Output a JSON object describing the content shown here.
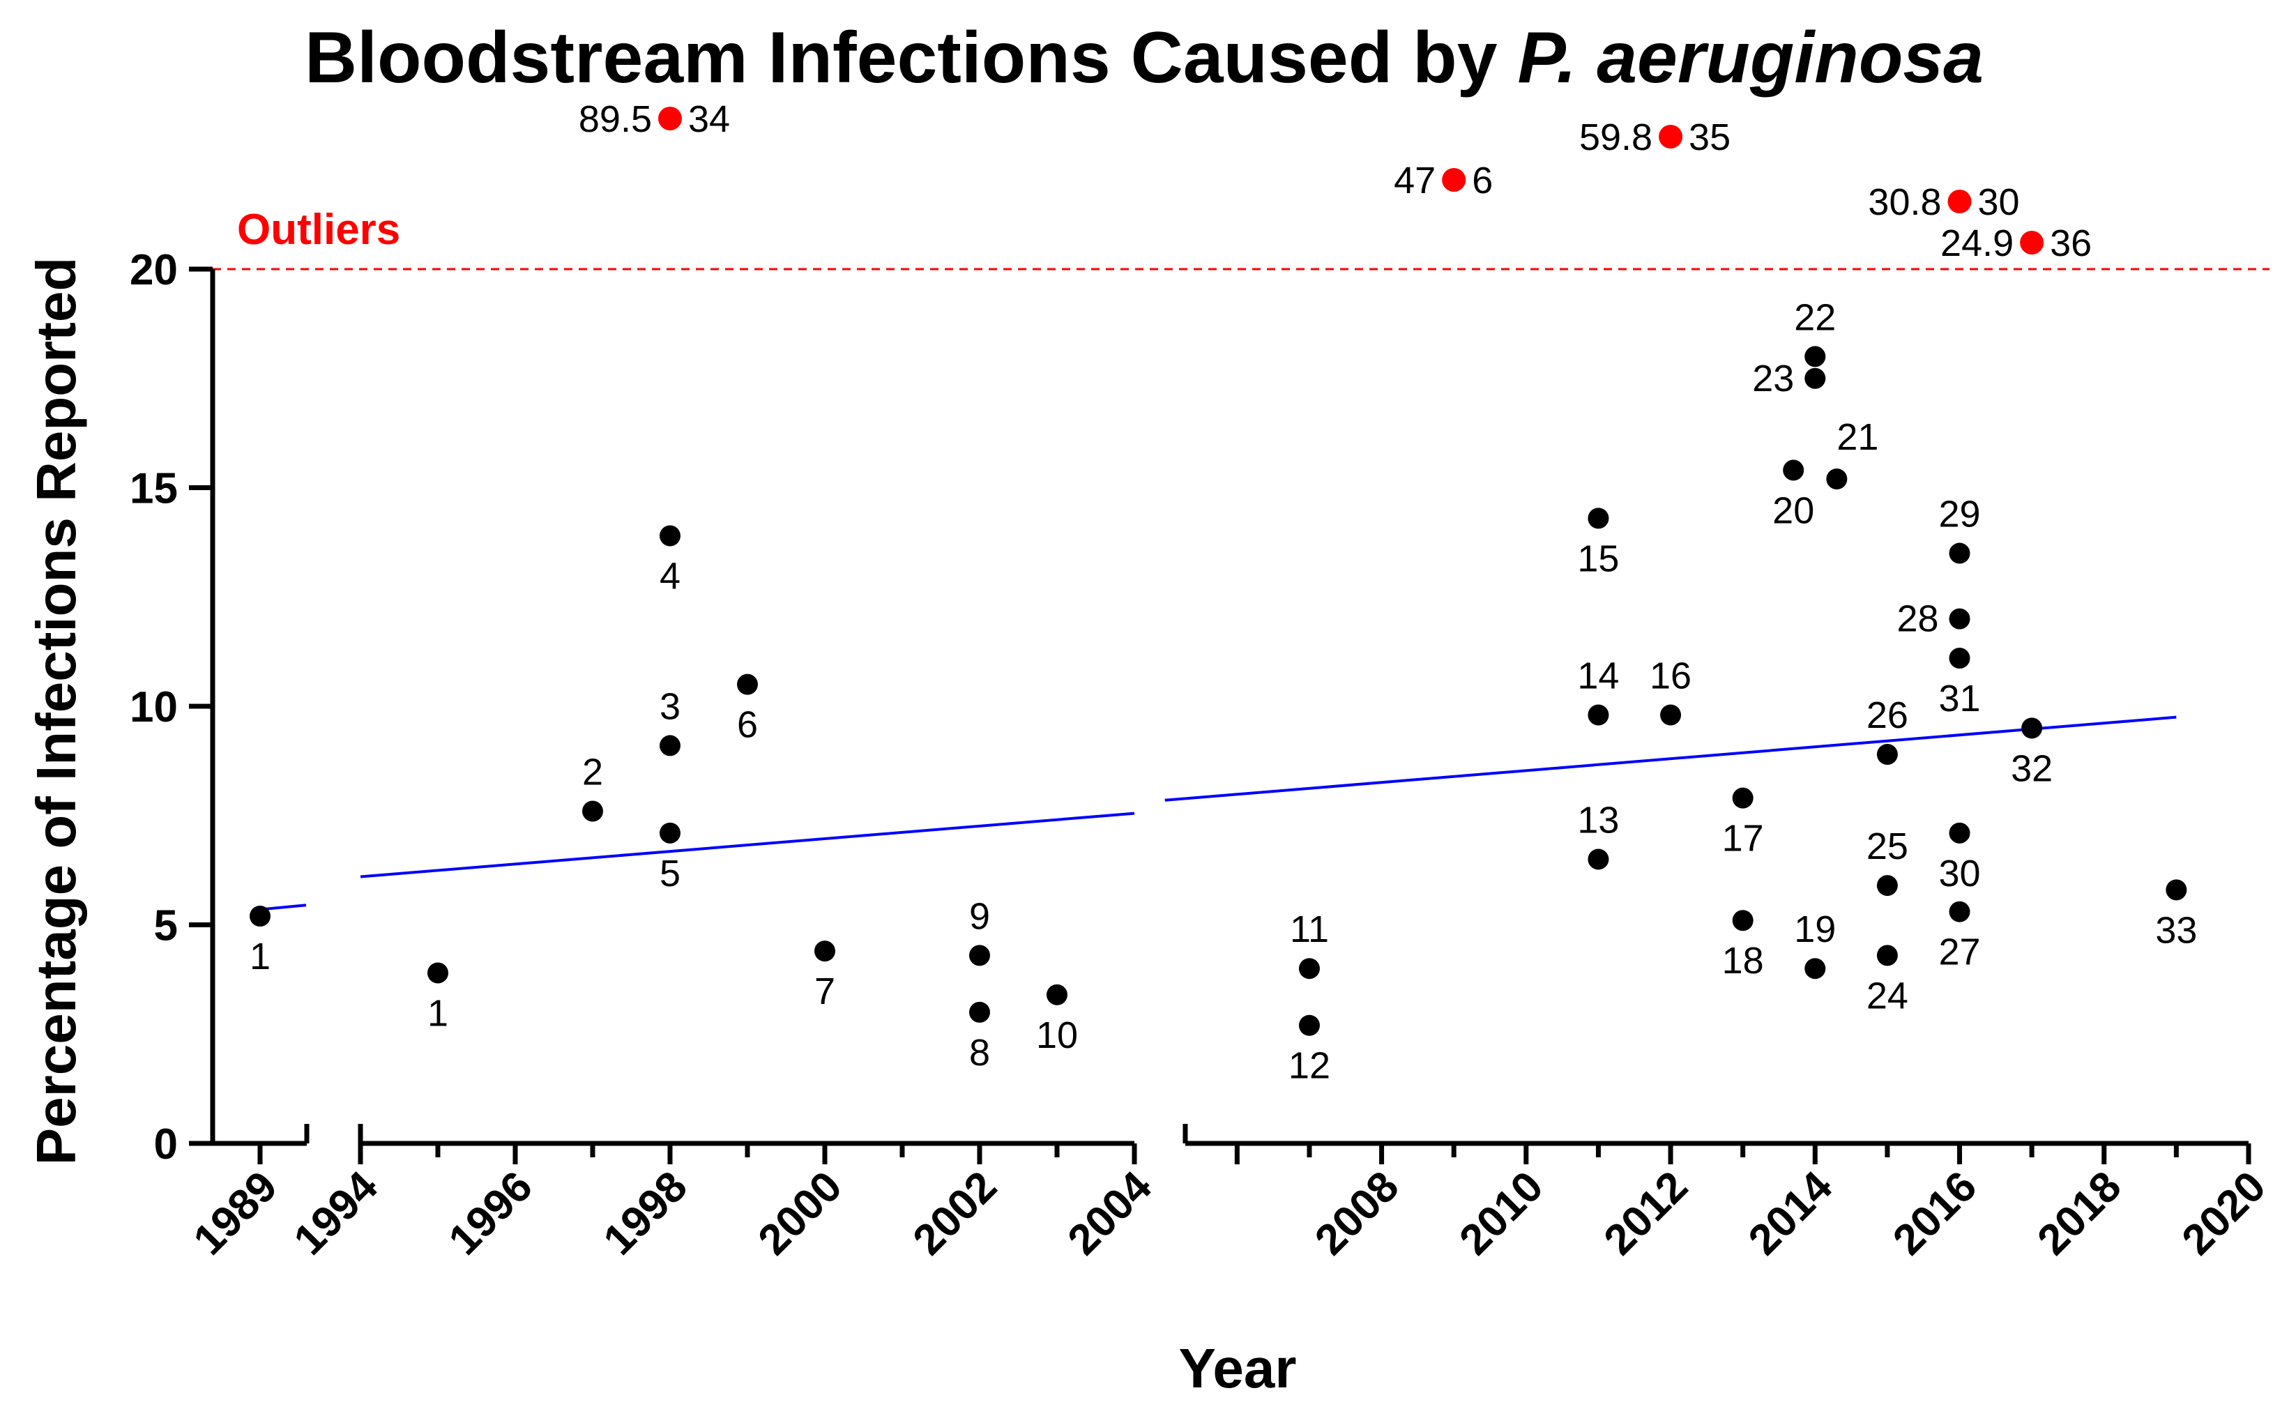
{
  "chart_data": {
    "type": "scatter",
    "title_prefix": "Bloodstream Infections Caused by ",
    "title_species": "P. aeruginosa",
    "xlabel": "Year",
    "ylabel": "Percentage of Infections Reported",
    "ylim": [
      0,
      20
    ],
    "yticks": [
      "0",
      "5",
      "10",
      "15",
      "20"
    ],
    "outlier_threshold": 20,
    "outlier_label": "Outliers",
    "colors": {
      "point": "#000000",
      "outlier": "#ff0000",
      "trend": "#0000ff",
      "threshold": "#ff0000"
    },
    "segments": [
      {
        "range": [
          1989,
          1989
        ],
        "ticks": [
          "1989"
        ]
      },
      {
        "range": [
          1994,
          2004
        ],
        "ticks": [
          "1994",
          "1996",
          "1998",
          "2000",
          "2002",
          "2004"
        ]
      },
      {
        "range": [
          2005,
          2020
        ],
        "ticks": [
          "2008",
          "2010",
          "2012",
          "2014",
          "2016",
          "2018",
          "2020"
        ]
      }
    ],
    "trend": [
      {
        "x": [
          1989,
          1989.6
        ],
        "y": [
          5.35,
          5.45
        ]
      },
      {
        "x": [
          1994,
          2004
        ],
        "y": [
          6.1,
          7.55
        ]
      },
      {
        "x": [
          2005,
          2019
        ],
        "y": [
          7.85,
          9.75
        ]
      }
    ],
    "points": [
      {
        "id": "1",
        "year": 1989,
        "value": 5.2,
        "label_pos": "below"
      },
      {
        "id": "1",
        "year": 1995,
        "value": 3.9,
        "label_pos": "below"
      },
      {
        "id": "2",
        "year": 1997,
        "value": 7.6,
        "label_pos": "above"
      },
      {
        "id": "4",
        "year": 1998,
        "value": 13.9,
        "label_pos": "below"
      },
      {
        "id": "3",
        "year": 1998,
        "value": 9.1,
        "label_pos": "above"
      },
      {
        "id": "5",
        "year": 1998,
        "value": 7.1,
        "label_pos": "below"
      },
      {
        "id": "6",
        "year": 1999,
        "value": 10.5,
        "label_pos": "below"
      },
      {
        "id": "7",
        "year": 2000,
        "value": 4.4,
        "label_pos": "below"
      },
      {
        "id": "9",
        "year": 2002,
        "value": 4.3,
        "label_pos": "above"
      },
      {
        "id": "8",
        "year": 2002,
        "value": 3.0,
        "label_pos": "below"
      },
      {
        "id": "10",
        "year": 2003,
        "value": 3.4,
        "label_pos": "below"
      },
      {
        "id": "11",
        "year": 2007,
        "value": 4.0,
        "label_pos": "above"
      },
      {
        "id": "12",
        "year": 2007,
        "value": 2.7,
        "label_pos": "below"
      },
      {
        "id": "15",
        "year": 2011,
        "value": 14.3,
        "label_pos": "below"
      },
      {
        "id": "14",
        "year": 2011,
        "value": 9.8,
        "label_pos": "above"
      },
      {
        "id": "13",
        "year": 2011,
        "value": 6.5,
        "label_pos": "above"
      },
      {
        "id": "16",
        "year": 2012,
        "value": 9.8,
        "label_pos": "above"
      },
      {
        "id": "17",
        "year": 2013,
        "value": 7.9,
        "label_pos": "below"
      },
      {
        "id": "18",
        "year": 2013,
        "value": 5.1,
        "label_pos": "below"
      },
      {
        "id": "22",
        "year": 2014,
        "value": 18.0,
        "label_pos": "above"
      },
      {
        "id": "23",
        "year": 2014,
        "value": 17.5,
        "label_pos": "left"
      },
      {
        "id": "20",
        "year": 2013.7,
        "value": 15.4,
        "label_pos": "below"
      },
      {
        "id": "21",
        "year": 2014.3,
        "value": 15.2,
        "label_pos": "above-right"
      },
      {
        "id": "19",
        "year": 2014,
        "value": 4.0,
        "label_pos": "above"
      },
      {
        "id": "26",
        "year": 2015,
        "value": 8.9,
        "label_pos": "above"
      },
      {
        "id": "25",
        "year": 2015,
        "value": 5.9,
        "label_pos": "above"
      },
      {
        "id": "24",
        "year": 2015,
        "value": 4.3,
        "label_pos": "below"
      },
      {
        "id": "29",
        "year": 2016,
        "value": 13.5,
        "label_pos": "above"
      },
      {
        "id": "28",
        "year": 2016,
        "value": 12.0,
        "label_pos": "left"
      },
      {
        "id": "31",
        "year": 2016,
        "value": 11.1,
        "label_pos": "below"
      },
      {
        "id": "30",
        "year": 2016,
        "value": 7.1,
        "label_pos": "below"
      },
      {
        "id": "27",
        "year": 2016,
        "value": 5.3,
        "label_pos": "below"
      },
      {
        "id": "32",
        "year": 2017,
        "value": 9.5,
        "label_pos": "below"
      },
      {
        "id": "33",
        "year": 2019,
        "value": 5.8,
        "label_pos": "below"
      }
    ],
    "outliers": [
      {
        "id": "34",
        "value_label": "89.5",
        "year": 1998
      },
      {
        "id": "6",
        "value_label": "47",
        "year": 2009
      },
      {
        "id": "35",
        "value_label": "59.8",
        "year": 2012
      },
      {
        "id": "30",
        "value_label": "30.8",
        "year": 2016
      },
      {
        "id": "36",
        "value_label": "24.9",
        "year": 2017
      }
    ]
  }
}
